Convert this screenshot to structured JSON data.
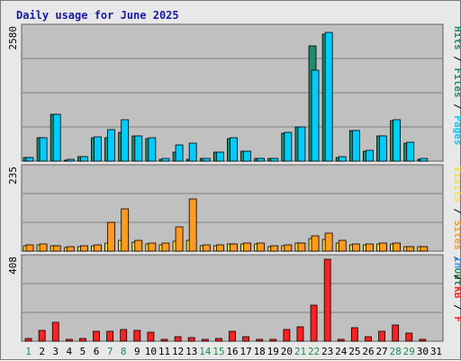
{
  "title": "Daily usage for June 2025",
  "colors": {
    "frame_bg": "#e8e8e8",
    "panel_bg": "#c0c0c0",
    "grid": "#808080",
    "hits": "#00ccff",
    "files": "#1e8c6e",
    "pages": "#00ccff",
    "visits": "#ffdd33",
    "sites": "#ff9922",
    "kbin": "#3399ff",
    "kbout": "#2e8b57",
    "kbf": "#ff2020",
    "weekend": "#1e8c4e",
    "weekday": "#000000"
  },
  "legend": {
    "top": [
      "Hits",
      "Files",
      "Pages"
    ],
    "middle": [
      "Visits",
      "Sites",
      "Out"
    ],
    "bottom": [
      "In",
      "KB",
      "F"
    ]
  },
  "chart_data": [
    {
      "type": "bar",
      "title": "Daily usage for June 2025",
      "x": [
        "1",
        "2",
        "3",
        "4",
        "5",
        "6",
        "7",
        "8",
        "9",
        "10",
        "11",
        "12",
        "13",
        "14",
        "15",
        "16",
        "17",
        "18",
        "19",
        "20",
        "21",
        "22",
        "23",
        "24",
        "25",
        "26",
        "27",
        "28",
        "29",
        "30",
        "31"
      ],
      "weekend_days": [
        "1",
        "7",
        "8",
        "14",
        "15",
        "21",
        "22",
        "28",
        "29"
      ],
      "ymax_label": "2580",
      "ylim": [
        0,
        2580
      ],
      "series": [
        {
          "name": "Hits",
          "values": [
            65,
            450,
            900,
            25,
            80,
            460,
            460,
            560,
            480,
            440,
            40,
            180,
            40,
            45,
            170,
            440,
            190,
            55,
            55,
            540,
            660,
            2240,
            2460,
            75,
            590,
            195,
            480,
            790,
            345,
            40,
            0
          ]
        },
        {
          "name": "Files",
          "values": [
            70,
            460,
            910,
            30,
            90,
            470,
            610,
            810,
            490,
            460,
            45,
            320,
            340,
            50,
            180,
            450,
            200,
            60,
            60,
            560,
            670,
            1760,
            2500,
            80,
            600,
            210,
            490,
            800,
            360,
            45,
            0
          ]
        }
      ]
    },
    {
      "type": "bar",
      "ymax_label": "235",
      "ylim": [
        0,
        235
      ],
      "series": [
        {
          "name": "Visits",
          "values": [
            16,
            18,
            16,
            10,
            14,
            16,
            22,
            30,
            26,
            20,
            18,
            28,
            30,
            16,
            16,
            20,
            20,
            20,
            14,
            16,
            22,
            36,
            34,
            24,
            18,
            18,
            20,
            20,
            13,
            13,
            0
          ]
        },
        {
          "name": "Sites",
          "values": [
            18,
            20,
            16,
            12,
            16,
            17,
            82,
            120,
            30,
            22,
            22,
            70,
            148,
            17,
            17,
            21,
            22,
            23,
            16,
            18,
            24,
            44,
            50,
            30,
            20,
            20,
            22,
            22,
            14,
            14,
            0
          ]
        }
      ]
    },
    {
      "type": "bar",
      "ymax_label": "408",
      "ylim": [
        0,
        408
      ],
      "series": [
        {
          "name": "KB F",
          "values": [
            15,
            52,
            95,
            8,
            14,
            50,
            48,
            56,
            52,
            45,
            10,
            22,
            16,
            10,
            14,
            50,
            22,
            10,
            10,
            58,
            70,
            178,
            405,
            10,
            65,
            24,
            50,
            82,
            40,
            8,
            0
          ]
        }
      ]
    }
  ]
}
